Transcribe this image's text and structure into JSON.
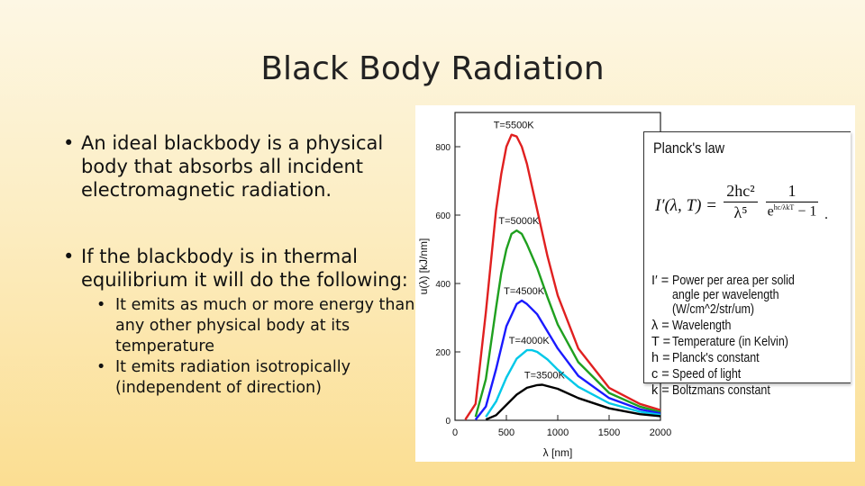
{
  "slide": {
    "title": "Black Body Radiation",
    "bullet1": "An ideal blackbody is a physical body that absorbs all incident electromagnetic radiation.",
    "bullet2": "If the blackbody is in thermal equilibrium it will do the following:",
    "sub1": "It emits as much or more energy than any other physical body at its temperature",
    "sub2": "It emits radiation isotropically (independent of direction)"
  },
  "legend": {
    "title": "Planck's law",
    "formula_lhs": "I′(λ, T) =",
    "frac1_num": "2hc²",
    "frac1_den": "λ⁵",
    "frac2_num": "1",
    "frac2_den": "e",
    "frac2_exp": "hc/λkT",
    "frac2_tail": "− 1",
    "defs": [
      {
        "sym": "I′ =",
        "text": "Power per area per solid angle per wavelength (W/cm^2/str/um)"
      },
      {
        "sym": "λ =",
        "text": "Wavelength"
      },
      {
        "sym": "T =",
        "text": "Temperature (in Kelvin)"
      },
      {
        "sym": "h =",
        "text": "Planck's constant"
      },
      {
        "sym": "c =",
        "text": "Speed of light"
      },
      {
        "sym": "k =",
        "text": "Boltzmans constant"
      }
    ]
  },
  "chart_data": {
    "type": "line",
    "xlabel": "λ [nm]",
    "ylabel": "u(λ) [kJ/nm]",
    "xlim": [
      0,
      2000
    ],
    "ylim": [
      0,
      900
    ],
    "xticks": [
      0,
      500,
      1000,
      1500,
      2000
    ],
    "yticks": [
      0,
      200,
      400,
      600,
      800
    ],
    "series": [
      {
        "name": "T=5500K",
        "color": "#e02020",
        "x": [
          100,
          200,
          300,
          400,
          450,
          500,
          550,
          600,
          650,
          700,
          800,
          900,
          1000,
          1200,
          1500,
          1800,
          2000
        ],
        "y": [
          2,
          48,
          315,
          615,
          720,
          800,
          835,
          830,
          800,
          750,
          615,
          480,
          365,
          210,
          95,
          48,
          30
        ]
      },
      {
        "name": "T=5000K",
        "color": "#1fa01f",
        "x": [
          200,
          300,
          400,
          450,
          500,
          550,
          600,
          650,
          700,
          800,
          900,
          1000,
          1200,
          1500,
          1800,
          2000
        ],
        "y": [
          10,
          120,
          330,
          430,
          500,
          545,
          555,
          545,
          515,
          445,
          360,
          280,
          170,
          80,
          40,
          24
        ]
      },
      {
        "name": "T=4500K",
        "color": "#1a1aff",
        "x": [
          200,
          300,
          400,
          500,
          600,
          650,
          700,
          800,
          900,
          1000,
          1200,
          1500,
          1800,
          2000
        ],
        "y": [
          2,
          40,
          150,
          275,
          340,
          350,
          340,
          310,
          260,
          210,
          130,
          65,
          32,
          20
        ]
      },
      {
        "name": "T=4000K",
        "color": "#00c8e8",
        "x": [
          300,
          400,
          500,
          600,
          700,
          750,
          800,
          900,
          1000,
          1200,
          1500,
          1800,
          2000
        ],
        "y": [
          10,
          55,
          125,
          180,
          205,
          205,
          200,
          178,
          148,
          98,
          50,
          25,
          16
        ]
      },
      {
        "name": "T=3500K",
        "color": "#000000",
        "x": [
          300,
          400,
          500,
          600,
          700,
          800,
          850,
          900,
          1000,
          1200,
          1500,
          1800,
          2000
        ],
        "y": [
          2,
          15,
          45,
          75,
          95,
          103,
          104,
          100,
          92,
          65,
          35,
          18,
          12
        ]
      }
    ]
  }
}
